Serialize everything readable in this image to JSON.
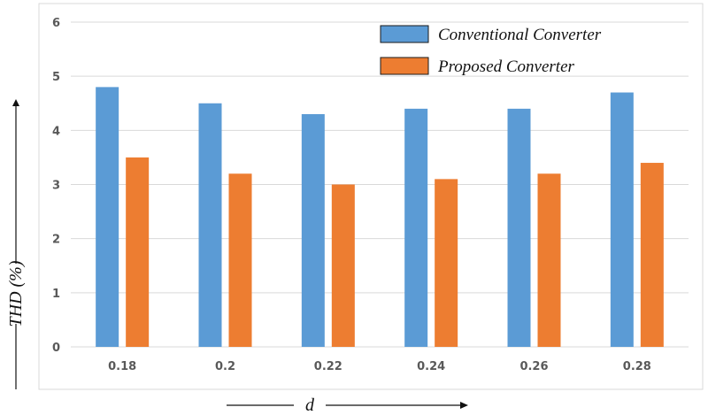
{
  "chart_data": {
    "type": "bar",
    "categories": [
      "0.18",
      "0.2",
      "0.22",
      "0.24",
      "0.26",
      "0.28"
    ],
    "series": [
      {
        "name": "Conventional Converter",
        "color": "#5B9BD5",
        "values": [
          4.8,
          4.5,
          4.3,
          4.4,
          4.4,
          4.7
        ]
      },
      {
        "name": "Proposed Converter",
        "color": "#ED7D31",
        "values": [
          3.5,
          3.2,
          3.0,
          3.1,
          3.2,
          3.4
        ]
      }
    ],
    "xlabel": "d",
    "ylabel": "THD (%)",
    "ylim": [
      0,
      6
    ],
    "yticks": [
      0,
      1,
      2,
      3,
      4,
      5,
      6
    ],
    "grid": true,
    "legend": "top-right"
  }
}
